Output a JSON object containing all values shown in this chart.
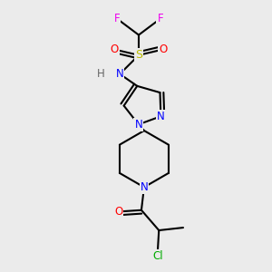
{
  "bg_color": "#ebebeb",
  "bond_color": "#000000",
  "atom_colors": {
    "F": "#ee00ee",
    "S": "#bbbb00",
    "O": "#ff0000",
    "N": "#0000ff",
    "H": "#666666",
    "Cl": "#00aa00",
    "C": "#000000"
  }
}
